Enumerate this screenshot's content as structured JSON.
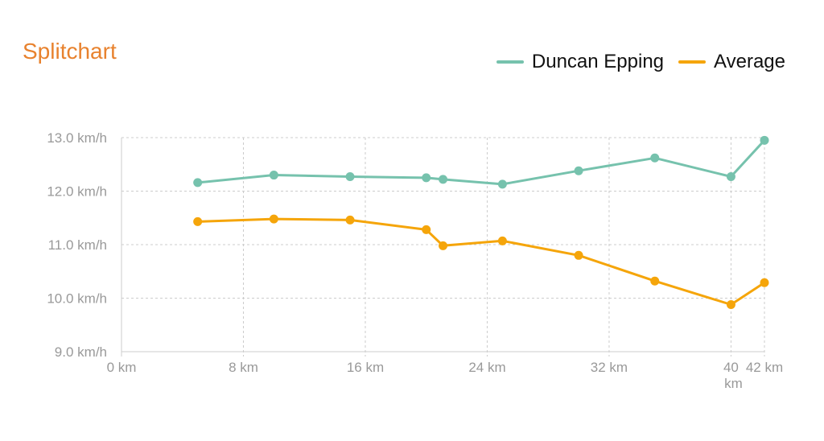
{
  "colors": {
    "title": "#E8822E",
    "series_1": "#76C2AD",
    "series_2": "#F5A50A",
    "grid": "#CCCCCC",
    "tick": "#999999"
  },
  "chart_data": {
    "type": "line",
    "title": "Splitchart",
    "xlabel": "",
    "ylabel": "",
    "xlim": [
      0,
      42.195
    ],
    "ylim": [
      9.0,
      13.0
    ],
    "grid": true,
    "legend_position": "top-right",
    "x_ticks": [
      {
        "value": 0,
        "label": "0 km"
      },
      {
        "value": 8,
        "label": "8 km"
      },
      {
        "value": 16,
        "label": "16 km"
      },
      {
        "value": 24,
        "label": "24 km"
      },
      {
        "value": 32,
        "label": "32 km"
      },
      {
        "value": 40,
        "label": "40 km"
      },
      {
        "value": 42.195,
        "label": "42 km"
      }
    ],
    "y_ticks": [
      {
        "value": 9.0,
        "label": "9.0 km/h"
      },
      {
        "value": 10.0,
        "label": "10.0 km/h"
      },
      {
        "value": 11.0,
        "label": "11.0 km/h"
      },
      {
        "value": 12.0,
        "label": "12.0 km/h"
      },
      {
        "value": 13.0,
        "label": "13.0 km/h"
      }
    ],
    "x": [
      5,
      10,
      15,
      20,
      21.1,
      25,
      30,
      35,
      40,
      42.195
    ],
    "series": [
      {
        "name": "Duncan Epping",
        "values": [
          12.16,
          12.3,
          12.27,
          12.25,
          12.22,
          12.13,
          12.38,
          12.62,
          12.27,
          12.95
        ]
      },
      {
        "name": "Average",
        "values": [
          11.43,
          11.48,
          11.46,
          11.28,
          10.98,
          11.07,
          10.8,
          10.32,
          9.88,
          10.29
        ]
      }
    ]
  }
}
